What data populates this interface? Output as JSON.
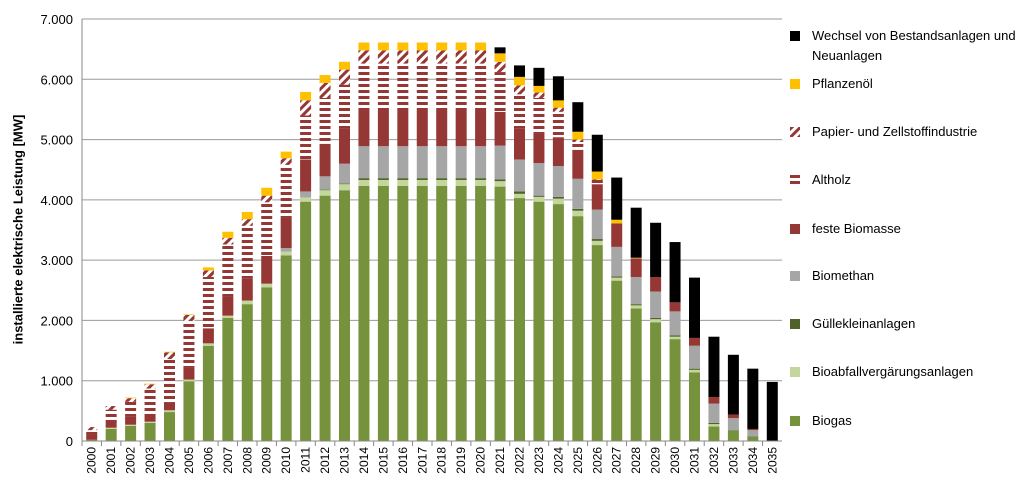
{
  "chart_data": {
    "type": "bar",
    "stacked": true,
    "title": "",
    "xlabel": "",
    "ylabel": "installierte elektrische Leistung [MW]",
    "ylim": [
      0,
      7000
    ],
    "yticks": [
      "0",
      "1.000",
      "2.000",
      "3.000",
      "4.000",
      "5.000",
      "6.000",
      "7.000"
    ],
    "ytick_values": [
      0,
      1000,
      2000,
      3000,
      4000,
      5000,
      6000,
      7000
    ],
    "grid": true,
    "legend_position": "right",
    "categories": [
      "2000",
      "2001",
      "2002",
      "2003",
      "2004",
      "2005",
      "2006",
      "2007",
      "2008",
      "2009",
      "2010",
      "2011",
      "2012",
      "2013",
      "2014",
      "2015",
      "2016",
      "2017",
      "2018",
      "2019",
      "2020",
      "2021",
      "2022",
      "2023",
      "2024",
      "2025",
      "2026",
      "2027",
      "2028",
      "2029",
      "2030",
      "2031",
      "2032",
      "2033",
      "2034",
      "2035"
    ],
    "series": [
      {
        "name": "Biogas",
        "color": "#76923c",
        "pattern": "solid",
        "values": [
          20,
          200,
          250,
          300,
          480,
          990,
          1580,
          2040,
          2270,
          2550,
          3080,
          3970,
          4070,
          4160,
          4230,
          4230,
          4230,
          4230,
          4230,
          4230,
          4230,
          4220,
          4030,
          3970,
          3930,
          3730,
          3250,
          2660,
          2200,
          1970,
          1690,
          1140,
          240,
          170,
          70,
          0
        ]
      },
      {
        "name": "Bioabfallvergärungsanlagen",
        "color": "#c3d69b",
        "pattern": "solid",
        "values": [
          0,
          20,
          20,
          20,
          30,
          30,
          40,
          40,
          60,
          60,
          60,
          70,
          90,
          100,
          100,
          100,
          100,
          100,
          100,
          100,
          100,
          90,
          70,
          80,
          90,
          90,
          70,
          50,
          50,
          50,
          40,
          40,
          40,
          0,
          0,
          0
        ]
      },
      {
        "name": "Gülleklein­anlagen",
        "color": "#4f6228",
        "pattern": "solid",
        "values": [
          0,
          0,
          0,
          0,
          0,
          0,
          0,
          0,
          0,
          0,
          0,
          0,
          10,
          10,
          30,
          30,
          30,
          30,
          30,
          30,
          30,
          30,
          40,
          20,
          30,
          30,
          30,
          20,
          20,
          20,
          20,
          20,
          20,
          10,
          10,
          0
        ]
      },
      {
        "name": "Biomethan",
        "color": "#a6a6a6",
        "pattern": "solid",
        "values": [
          0,
          0,
          0,
          0,
          0,
          0,
          0,
          0,
          0,
          0,
          60,
          100,
          220,
          330,
          530,
          530,
          530,
          530,
          530,
          530,
          530,
          560,
          530,
          540,
          510,
          500,
          490,
          490,
          450,
          440,
          400,
          380,
          320,
          200,
          100,
          0
        ]
      },
      {
        "name": "feste Biomasse",
        "color": "#953735",
        "pattern": "solid",
        "values": [
          80,
          130,
          130,
          130,
          130,
          200,
          250,
          310,
          370,
          460,
          500,
          530,
          540,
          590,
          600,
          600,
          600,
          600,
          600,
          600,
          600,
          560,
          510,
          490,
          480,
          480,
          420,
          390,
          310,
          240,
          150,
          130,
          110,
          60,
          20,
          0
        ]
      },
      {
        "name": "Altholz",
        "color": "#953735",
        "pattern": "horizontal",
        "values": [
          80,
          170,
          250,
          420,
          720,
          770,
          850,
          870,
          870,
          890,
          880,
          730,
          760,
          720,
          770,
          770,
          770,
          770,
          770,
          770,
          770,
          660,
          570,
          590,
          420,
          130,
          70,
          0,
          0,
          0,
          0,
          0,
          0,
          0,
          0,
          0
        ]
      },
      {
        "name": "Papier- und Zellstoffindustrie",
        "color": "#953735",
        "pattern": "diagonal",
        "values": [
          50,
          60,
          60,
          70,
          110,
          100,
          110,
          110,
          110,
          110,
          110,
          250,
          250,
          250,
          220,
          220,
          220,
          220,
          220,
          220,
          220,
          170,
          150,
          90,
          70,
          40,
          10,
          0,
          0,
          0,
          0,
          0,
          0,
          0,
          0,
          0
        ]
      },
      {
        "name": "Pflanzenöl",
        "color": "#ffc000",
        "pattern": "solid",
        "values": [
          0,
          0,
          10,
          10,
          10,
          10,
          50,
          100,
          120,
          130,
          110,
          140,
          130,
          130,
          130,
          130,
          130,
          130,
          130,
          130,
          130,
          140,
          140,
          110,
          120,
          130,
          130,
          60,
          10,
          0,
          0,
          0,
          0,
          0,
          0,
          0
        ]
      },
      {
        "name": "Wechsel von Bestandsanlagen und Neuanlagen",
        "color": "#000000",
        "pattern": "solid",
        "values": [
          0,
          0,
          0,
          0,
          0,
          0,
          0,
          0,
          0,
          0,
          0,
          0,
          0,
          0,
          0,
          0,
          0,
          0,
          0,
          0,
          0,
          100,
          190,
          300,
          400,
          490,
          610,
          700,
          830,
          900,
          1000,
          1000,
          1000,
          990,
          1000,
          980
        ]
      }
    ],
    "legend_order": [
      "Wechsel von Bestandsanlagen und Neuanlagen",
      "Pflanzenöl",
      "Papier- und Zellstoffindustrie",
      "Altholz",
      "feste Biomasse",
      "Biomethan",
      "Güllekleinanlagen",
      "Bioabfallvergärungsanlagen",
      "Biogas"
    ]
  },
  "legend": {
    "wechsel_line1": "Wechsel von Bestandsanlagen und",
    "wechsel_line2": "Neuanlagen",
    "pflanzenoel": "Pflanzenöl",
    "papier": "Papier- und Zellstoffindustrie",
    "altholz": "Altholz",
    "feste": "feste Biomasse",
    "biomethan": "Biomethan",
    "guelle": "Güllekleinanlagen",
    "bioabfall": "Bioabfallvergärungsanlagen",
    "biogas": "Biogas"
  }
}
